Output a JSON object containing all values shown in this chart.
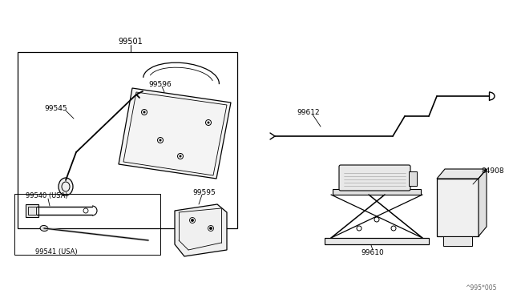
{
  "bg_color": "#ffffff",
  "line_color": "#000000",
  "fig_width": 6.4,
  "fig_height": 3.72,
  "dpi": 100,
  "watermark": "^995*005"
}
